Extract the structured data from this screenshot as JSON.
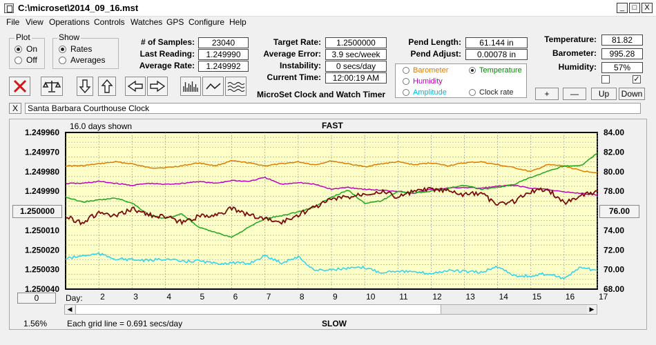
{
  "window": {
    "title": "C:\\microset\\2014_09_16.mst",
    "minimize": "_",
    "restore": "□",
    "close": "X"
  },
  "menu": [
    "File",
    "View",
    "Operations",
    "Controls",
    "Watches",
    "GPS",
    "Configure",
    "Help"
  ],
  "plot_group": {
    "legend": "Plot",
    "options": [
      "On",
      "Off"
    ],
    "selected": 0
  },
  "show_group": {
    "legend": "Show",
    "options": [
      "Rates",
      "Averages"
    ],
    "selected": 0
  },
  "stats": [
    {
      "label": "# of Samples:",
      "value": "23040"
    },
    {
      "label": "Last Reading:",
      "value": "1.249990"
    },
    {
      "label": "Average Rate:",
      "value": "1.249992"
    }
  ],
  "rates": [
    {
      "label": "Target Rate:",
      "value": "1.2500000"
    },
    {
      "label": "Average Error:",
      "value": "3.9 sec/week"
    },
    {
      "label": "Instability:",
      "value": "0 secs/day"
    },
    {
      "label": "Current Time:",
      "value": "12:00:19 AM"
    }
  ],
  "app_caption": "MicroSet Clock and Watch Timer",
  "pendulum": [
    {
      "label": "Pend Length:",
      "value": "61.144 in"
    },
    {
      "label": "Pend Adjust:",
      "value": "0.00078 in"
    }
  ],
  "environment": [
    {
      "label": "Temperature:",
      "value": "81.82"
    },
    {
      "label": "Barometer:",
      "value": "995.28"
    },
    {
      "label": "Humidity:",
      "value": "57%"
    }
  ],
  "checkboxes": [
    {
      "checked": false
    },
    {
      "checked": true
    }
  ],
  "sensor_select": {
    "options": [
      {
        "label": "Barometer",
        "color": "#e07a00",
        "selected": false
      },
      {
        "label": "Temperature",
        "color": "#008800",
        "selected": true
      },
      {
        "label": "Humidity",
        "color": "#c000c0",
        "selected": false
      },
      {
        "label": "Clock rate",
        "color": "#222222",
        "selected": false
      },
      {
        "label": "Amplitude",
        "color": "#00b8e0",
        "selected": false
      }
    ]
  },
  "scale_buttons": [
    "+",
    "—",
    "Up",
    "Down"
  ],
  "clock": {
    "close_label": "X",
    "name": "Santa Barbara Courthouse Clock"
  },
  "chart_overlay": {
    "days_shown": "16.0 days shown",
    "fast": "FAST",
    "slow": "SLOW",
    "day_label": "Day:",
    "grid_note": "Each grid line = 0.691 secs/day",
    "percent": "1.56%",
    "left_button": "1.250000",
    "right_button": "76.00",
    "bottom_left_button": "0"
  },
  "chart_data": {
    "type": "line",
    "x_label": "Day:",
    "x_ticks": [
      2,
      3,
      4,
      5,
      6,
      7,
      8,
      9,
      10,
      11,
      12,
      13,
      14,
      15,
      16,
      17
    ],
    "x_range": [
      1.0,
      17.0
    ],
    "left_axis": {
      "ticks": [
        "1.249960",
        "1.249970",
        "1.249980",
        "1.249990",
        "1.250000",
        "1.250010",
        "1.250020",
        "1.250030",
        "1.250040"
      ],
      "range": [
        1.24996,
        1.25004
      ],
      "inverted": true
    },
    "right_axis": {
      "ticks": [
        "84.00",
        "82.00",
        "80.00",
        "78.00",
        "76.00",
        "74.00",
        "72.00",
        "70.00",
        "68.00"
      ],
      "range": [
        68,
        84
      ]
    },
    "grid": true,
    "series": [
      {
        "name": "Barometer",
        "color": "#e07a00",
        "axis": "right",
        "x": [
          1.0,
          1.5,
          2.0,
          2.5,
          3.0,
          3.5,
          4.0,
          4.5,
          5.0,
          5.5,
          6.0,
          6.5,
          7.0,
          7.5,
          8.0,
          8.5,
          9.0,
          9.5,
          10.0,
          10.5,
          11.0,
          11.5,
          12.0,
          12.5,
          13.0,
          13.5,
          14.0,
          14.5,
          15.0,
          15.5,
          16.0,
          16.5,
          17.0
        ],
        "values": [
          80.6,
          80.6,
          80.8,
          81.0,
          80.8,
          80.4,
          80.4,
          80.6,
          80.9,
          80.6,
          81.1,
          80.9,
          80.6,
          80.8,
          81.0,
          80.7,
          81.1,
          80.8,
          80.5,
          80.8,
          81.0,
          80.7,
          80.9,
          80.6,
          80.9,
          81.0,
          80.7,
          80.4,
          80.0,
          80.7,
          80.6,
          80.1,
          79.9
        ]
      },
      {
        "name": "Humidity",
        "color": "#c000c0",
        "axis": "right",
        "x": [
          1.0,
          1.5,
          2.0,
          2.5,
          3.0,
          3.5,
          4.0,
          4.5,
          5.0,
          5.5,
          6.0,
          6.5,
          7.0,
          7.5,
          8.0,
          8.5,
          9.0,
          9.5,
          10.0,
          10.5,
          11.0,
          11.5,
          12.0,
          12.5,
          13.0,
          13.5,
          14.0,
          14.5,
          15.0,
          15.5,
          16.0,
          16.5,
          17.0
        ],
        "values": [
          78.8,
          78.8,
          79.0,
          78.8,
          78.6,
          78.8,
          78.7,
          78.8,
          79.0,
          78.8,
          79.1,
          79.0,
          79.4,
          78.7,
          78.9,
          78.7,
          78.2,
          78.4,
          78.2,
          78.1,
          78.0,
          77.8,
          78.2,
          78.3,
          78.4,
          78.3,
          78.5,
          78.6,
          78.3,
          78.2,
          77.9,
          77.8,
          77.6
        ]
      },
      {
        "name": "Temperature",
        "color": "#1aa81a",
        "axis": "right",
        "x": [
          1.0,
          1.5,
          2.0,
          2.5,
          3.0,
          3.5,
          4.0,
          4.5,
          5.0,
          5.5,
          6.0,
          6.5,
          7.0,
          7.5,
          8.0,
          8.5,
          9.0,
          9.5,
          10.0,
          10.5,
          11.0,
          11.5,
          12.0,
          12.5,
          13.0,
          13.5,
          14.0,
          14.5,
          15.0,
          15.5,
          16.0,
          16.5,
          17.0
        ],
        "values": [
          77.4,
          76.9,
          77.1,
          77.3,
          76.8,
          75.6,
          75.2,
          75.7,
          74.3,
          73.8,
          73.3,
          74.3,
          75.2,
          75.5,
          75.9,
          76.4,
          77.4,
          78.1,
          76.8,
          77.0,
          78.0,
          77.8,
          78.0,
          78.3,
          78.6,
          78.2,
          78.4,
          78.7,
          79.4,
          80.0,
          80.6,
          80.6,
          81.9
        ]
      },
      {
        "name": "Amplitude",
        "color": "#28d4f0",
        "axis": "right",
        "x": [
          1.0,
          1.5,
          2.0,
          2.5,
          3.0,
          3.5,
          4.0,
          4.5,
          5.0,
          5.5,
          6.0,
          6.5,
          7.0,
          7.5,
          8.0,
          8.5,
          9.0,
          9.5,
          10.0,
          10.5,
          11.0,
          11.5,
          12.0,
          12.5,
          13.0,
          13.5,
          14.0,
          14.5,
          15.0,
          15.5,
          16.0,
          16.5,
          17.0
        ],
        "values": [
          71.1,
          71.4,
          71.6,
          71.1,
          71.0,
          70.9,
          71.1,
          70.8,
          70.9,
          70.6,
          70.7,
          70.6,
          71.4,
          70.7,
          71.3,
          69.9,
          70.0,
          70.1,
          70.2,
          69.7,
          69.9,
          69.7,
          69.6,
          69.9,
          69.8,
          69.7,
          70.3,
          69.4,
          69.3,
          69.6,
          69.1,
          70.2,
          69.9
        ]
      },
      {
        "name": "Clock rate",
        "color": "#7a0a0a",
        "axis": "left",
        "x": [
          1.0,
          1.5,
          2.0,
          2.5,
          3.0,
          3.5,
          4.0,
          4.5,
          5.0,
          5.5,
          6.0,
          6.5,
          7.0,
          7.5,
          8.0,
          8.5,
          9.0,
          9.5,
          10.0,
          10.5,
          11.0,
          11.5,
          12.0,
          12.5,
          13.0,
          13.5,
          14.0,
          14.5,
          15.0,
          15.5,
          16.0,
          16.5,
          17.0
        ],
        "values": [
          1.250003,
          1.250006,
          1.250001,
          1.250003,
          1.249999,
          1.250002,
          1.250003,
          1.250006,
          1.250003,
          1.250002,
          1.249999,
          1.250002,
          1.250004,
          1.250006,
          1.250002,
          1.249998,
          1.249994,
          1.249993,
          1.249991,
          1.24999,
          1.249993,
          1.24999,
          1.249989,
          1.24999,
          1.249992,
          1.249991,
          1.249997,
          1.249995,
          1.24999,
          1.249989,
          1.249996,
          1.249992,
          1.24999
        ]
      }
    ]
  }
}
